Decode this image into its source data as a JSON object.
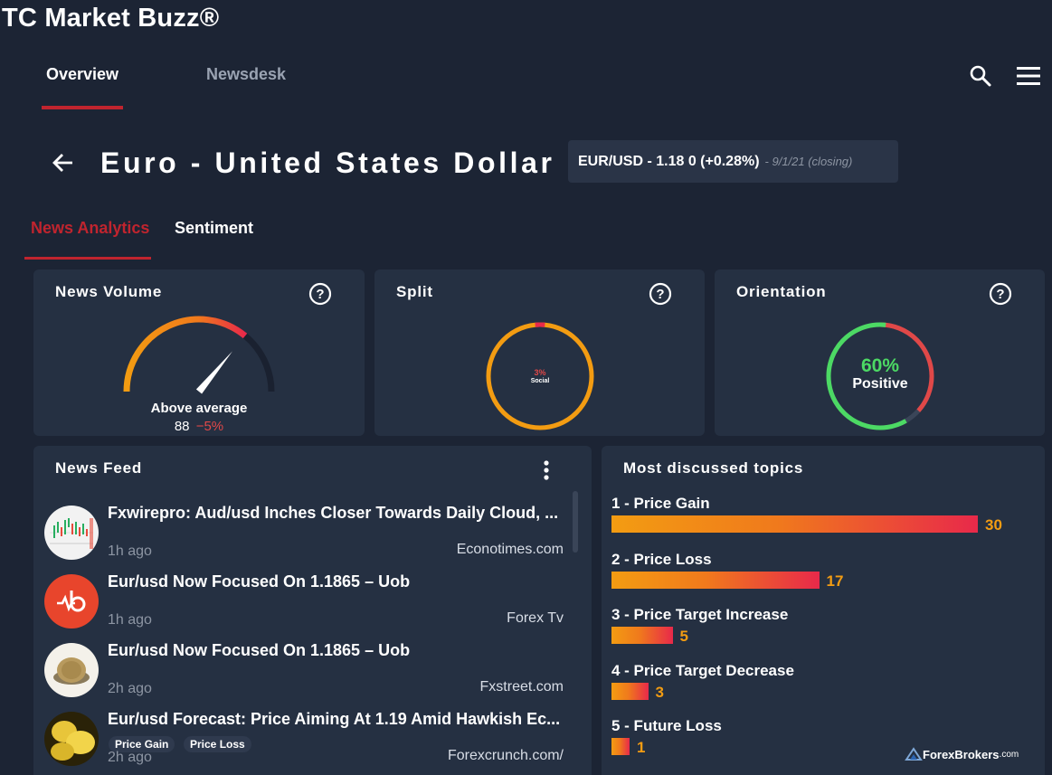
{
  "app": {
    "title": "TC Market Buzz®"
  },
  "top_tabs": [
    {
      "label": "Overview"
    },
    {
      "label": "Newsdesk"
    }
  ],
  "header": {
    "pair_title": "Euro - United States Dollar",
    "quote": "EUR/USD -  1.18 0 (+0.28%)",
    "quote_date": "- 9/1/21  (closing)"
  },
  "sub_tabs": [
    {
      "label": "News Analytics"
    },
    {
      "label": "Sentiment"
    }
  ],
  "volume": {
    "title": "News Volume",
    "level_text": "Above average",
    "count": "88",
    "change": "−5%",
    "needle_fraction": 0.72
  },
  "split": {
    "title": "Split",
    "social_pct": "3%",
    "social_label": "Social",
    "social_fraction": 0.03
  },
  "orientation": {
    "title": "Orientation",
    "pct": "60%",
    "label": "Positive",
    "positive_fraction": 0.6
  },
  "feed": {
    "title": "News Feed",
    "items": [
      {
        "headline": "Fxwirepro: Aud/usd Inches Closer Towards Daily Cloud, ...",
        "time": "1h ago",
        "source": "Econotimes.com",
        "tags": []
      },
      {
        "headline": "Eur/usd Now Focused On 1.1865 – Uob",
        "time": "1h ago",
        "source": "Forex Tv",
        "tags": []
      },
      {
        "headline": "Eur/usd Now Focused On 1.1865 – Uob",
        "time": "2h ago",
        "source": "Fxstreet.com",
        "tags": []
      },
      {
        "headline": "Eur/usd Forecast: Price Aiming At 1.19 Amid Hawkish Ec...",
        "time": "2h ago",
        "source": "Forexcrunch.com/",
        "tags": [
          "Price Gain",
          "Price Loss"
        ]
      }
    ]
  },
  "topics": {
    "title": "Most discussed topics",
    "max": 30,
    "items": [
      {
        "label": "1 - Price Gain",
        "count": 30
      },
      {
        "label": "2 - Price Loss",
        "count": 17
      },
      {
        "label": "3 - Price Target Increase",
        "count": 5
      },
      {
        "label": "4 - Price Target Decrease",
        "count": 3
      },
      {
        "label": "5 - Future Loss",
        "count": 1
      }
    ]
  },
  "colors": {
    "background": "#1c2434",
    "card": "#253042",
    "accent_red": "#c0242e",
    "orange": "#f39c12",
    "positive_green": "#4cd964",
    "negative_red": "#e04848"
  },
  "watermark": {
    "main": "ForexBrokers",
    "suffix": ".com"
  }
}
